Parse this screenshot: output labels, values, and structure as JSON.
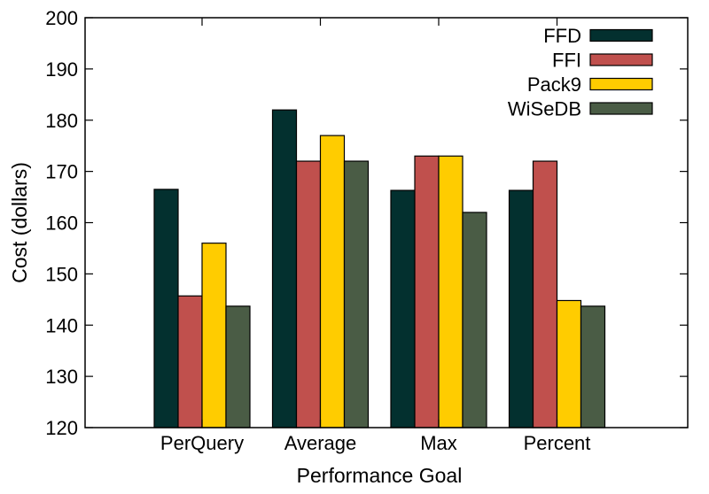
{
  "chart_data": {
    "type": "bar",
    "xlabel": "Performance Goal",
    "ylabel": "Cost (dollars)",
    "ylim": [
      120,
      200
    ],
    "yticks": [
      120,
      130,
      140,
      150,
      160,
      170,
      180,
      190,
      200
    ],
    "categories": [
      "PerQuery",
      "Average",
      "Max",
      "Percent"
    ],
    "series": [
      {
        "name": "FFD",
        "color": "#03302f",
        "values": [
          166.5,
          182,
          166.3,
          166.3
        ]
      },
      {
        "name": "FFI",
        "color": "#c0504d",
        "values": [
          145.7,
          172,
          173,
          172
        ]
      },
      {
        "name": "Pack9",
        "color": "#ffcc00",
        "values": [
          156,
          177,
          173,
          144.8
        ]
      },
      {
        "name": "WiSeDB",
        "color": "#4a5c45",
        "values": [
          143.7,
          172,
          162,
          143.7
        ]
      }
    ],
    "grid": false,
    "legend_position": "top-right"
  }
}
